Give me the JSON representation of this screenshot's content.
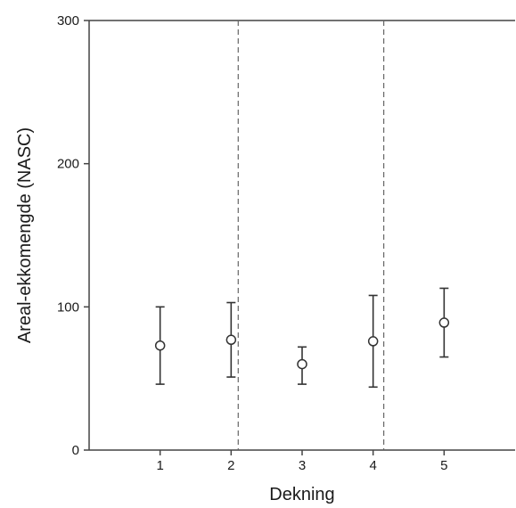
{
  "chart_data": {
    "type": "scatter",
    "xlabel": "Dekning",
    "ylabel": "Areal-ekkomengde (NASC)",
    "xlim": [
      0,
      6
    ],
    "ylim": [
      0,
      300
    ],
    "x_ticks": [
      1,
      2,
      3,
      4,
      5
    ],
    "x_tick_labels": [
      "1",
      "2",
      "3",
      "4",
      "5"
    ],
    "y_ticks": [
      0,
      100,
      200,
      300
    ],
    "y_tick_labels": [
      "0",
      "100",
      "200",
      "300"
    ],
    "grid": false,
    "points": [
      {
        "x": 1,
        "y": 73,
        "lower": 46,
        "upper": 100
      },
      {
        "x": 2,
        "y": 77,
        "lower": 51,
        "upper": 103
      },
      {
        "x": 3,
        "y": 60,
        "lower": 46,
        "upper": 72
      },
      {
        "x": 4,
        "y": 76,
        "lower": 44,
        "upper": 108
      },
      {
        "x": 5,
        "y": 89,
        "lower": 65,
        "upper": 113
      }
    ],
    "vertical_reference_lines": [
      2.1,
      4.15
    ],
    "colors": {
      "axis": "#444444",
      "marker": "#333333",
      "reference_line": "#666666"
    }
  }
}
